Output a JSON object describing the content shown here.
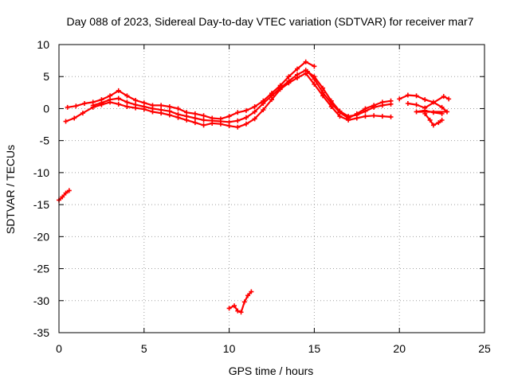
{
  "chart_data": {
    "type": "scatter",
    "title": "Day 088 of 2023, Sidereal Day-to-day VTEC variation (SDTVAR) for receiver mar7",
    "xlabel": "GPS time / hours",
    "ylabel": "SDTVAR / TECUs",
    "xlim": [
      0,
      25
    ],
    "ylim": [
      -35,
      10
    ],
    "xticks": [
      0,
      5,
      10,
      15,
      20,
      25
    ],
    "yticks": [
      10,
      5,
      0,
      -5,
      -10,
      -15,
      -20,
      -25,
      -30,
      -35
    ],
    "grid": true,
    "series_color": "#ff0000",
    "series": [
      {
        "name": "main-upper",
        "points": [
          [
            0.5,
            0.2
          ],
          [
            1.0,
            0.4
          ],
          [
            1.5,
            0.8
          ],
          [
            2.0,
            1.0
          ],
          [
            2.5,
            1.4
          ],
          [
            3.0,
            2.0
          ],
          [
            3.5,
            2.8
          ],
          [
            4.0,
            2.0
          ],
          [
            4.5,
            1.3
          ],
          [
            5.0,
            0.9
          ],
          [
            5.5,
            0.5
          ],
          [
            6.0,
            0.5
          ],
          [
            6.5,
            0.3
          ],
          [
            7.0,
            0.0
          ],
          [
            7.5,
            -0.6
          ],
          [
            8.0,
            -0.8
          ],
          [
            8.5,
            -1.1
          ],
          [
            9.0,
            -1.5
          ],
          [
            9.5,
            -1.6
          ],
          [
            10.0,
            -1.2
          ],
          [
            10.5,
            -0.6
          ],
          [
            11.0,
            -0.3
          ],
          [
            11.5,
            0.3
          ],
          [
            12.0,
            1.2
          ],
          [
            12.5,
            2.4
          ],
          [
            13.0,
            3.6
          ],
          [
            13.5,
            5.0
          ],
          [
            14.0,
            6.2
          ],
          [
            14.5,
            7.3
          ],
          [
            15.0,
            6.6
          ]
        ]
      },
      {
        "name": "main-lower",
        "points": [
          [
            0.4,
            -2.0
          ],
          [
            0.9,
            -1.5
          ],
          [
            1.4,
            -0.7
          ],
          [
            2.0,
            0.2
          ],
          [
            2.5,
            0.6
          ],
          [
            3.0,
            1.0
          ],
          [
            3.5,
            0.7
          ],
          [
            4.0,
            0.3
          ],
          [
            4.5,
            0.1
          ],
          [
            5.0,
            -0.1
          ],
          [
            5.5,
            -0.5
          ],
          [
            6.0,
            -0.7
          ],
          [
            6.5,
            -1.0
          ],
          [
            7.0,
            -1.4
          ],
          [
            7.5,
            -1.8
          ],
          [
            8.0,
            -2.2
          ],
          [
            8.5,
            -2.6
          ],
          [
            9.0,
            -2.3
          ],
          [
            9.5,
            -2.4
          ],
          [
            10.0,
            -2.7
          ],
          [
            10.5,
            -2.9
          ],
          [
            11.0,
            -2.4
          ],
          [
            11.5,
            -1.6
          ],
          [
            12.0,
            -0.2
          ],
          [
            12.5,
            1.4
          ],
          [
            13.0,
            3.0
          ],
          [
            13.5,
            4.0
          ],
          [
            14.0,
            4.8
          ],
          [
            14.5,
            5.5
          ],
          [
            15.0,
            3.8
          ],
          [
            15.5,
            2.0
          ],
          [
            16.0,
            0.3
          ],
          [
            16.5,
            -1.2
          ],
          [
            17.0,
            -1.8
          ],
          [
            17.5,
            -1.5
          ],
          [
            18.0,
            -1.2
          ],
          [
            18.5,
            -1.1
          ],
          [
            19.0,
            -1.2
          ],
          [
            19.5,
            -1.3
          ]
        ]
      },
      {
        "name": "main-middle",
        "points": [
          [
            2.0,
            0.5
          ],
          [
            2.5,
            0.9
          ],
          [
            3.0,
            1.4
          ],
          [
            3.5,
            1.6
          ],
          [
            4.0,
            1.0
          ],
          [
            4.5,
            0.6
          ],
          [
            5.0,
            0.3
          ],
          [
            5.5,
            0.0
          ],
          [
            6.0,
            -0.2
          ],
          [
            6.5,
            -0.4
          ],
          [
            7.0,
            -0.9
          ],
          [
            7.5,
            -1.2
          ],
          [
            8.0,
            -1.5
          ],
          [
            8.5,
            -1.8
          ],
          [
            9.0,
            -1.9
          ],
          [
            9.5,
            -2.0
          ],
          [
            10.0,
            -2.1
          ],
          [
            10.5,
            -1.9
          ],
          [
            11.0,
            -1.4
          ],
          [
            11.5,
            -0.5
          ],
          [
            12.0,
            0.8
          ],
          [
            12.5,
            2.0
          ],
          [
            13.0,
            3.2
          ],
          [
            13.5,
            4.3
          ],
          [
            14.0,
            5.3
          ],
          [
            14.5,
            6.0
          ],
          [
            15.0,
            5.0
          ],
          [
            15.5,
            3.2
          ],
          [
            16.0,
            1.2
          ],
          [
            16.5,
            -0.4
          ],
          [
            17.0,
            -1.2
          ],
          [
            17.5,
            -1.0
          ],
          [
            18.0,
            -0.4
          ],
          [
            18.5,
            0.2
          ],
          [
            19.0,
            0.5
          ],
          [
            19.5,
            0.7
          ]
        ]
      },
      {
        "name": "late-arc",
        "points": [
          [
            14.6,
            5.8
          ],
          [
            15.0,
            4.6
          ],
          [
            15.5,
            2.5
          ],
          [
            16.0,
            0.8
          ],
          [
            16.5,
            -0.6
          ],
          [
            17.0,
            -1.5
          ],
          [
            17.5,
            -0.8
          ],
          [
            18.0,
            0.0
          ],
          [
            18.5,
            0.5
          ],
          [
            19.0,
            1.0
          ],
          [
            19.5,
            1.2
          ]
        ]
      },
      {
        "name": "evening-segments",
        "points": [
          [
            20.0,
            1.5
          ],
          [
            20.5,
            2.1
          ],
          [
            21.0,
            2.0
          ],
          [
            21.5,
            1.4
          ],
          [
            22.0,
            1.0
          ],
          [
            22.5,
            0.2
          ],
          [
            22.8,
            -0.5
          ],
          [
            21.0,
            -0.5
          ],
          [
            21.5,
            -0.3
          ],
          [
            22.0,
            -0.6
          ],
          [
            22.5,
            -0.8
          ]
        ]
      },
      {
        "name": "evening-drop",
        "points": [
          [
            21.5,
            -0.8
          ],
          [
            21.8,
            -1.8
          ],
          [
            22.0,
            -2.6
          ],
          [
            22.3,
            -2.2
          ],
          [
            22.5,
            -1.8
          ]
        ]
      },
      {
        "name": "evening-tail",
        "points": [
          [
            20.5,
            0.8
          ],
          [
            21.0,
            0.6
          ],
          [
            21.5,
            0.1
          ],
          [
            22.6,
            1.9
          ],
          [
            22.9,
            1.5
          ]
        ]
      },
      {
        "name": "early-outlier",
        "points": [
          [
            0.0,
            -14.3
          ],
          [
            0.2,
            -13.8
          ],
          [
            0.4,
            -13.2
          ],
          [
            0.6,
            -12.8
          ]
        ]
      },
      {
        "name": "midday-outlier",
        "points": [
          [
            10.0,
            -31.2
          ],
          [
            10.3,
            -30.8
          ],
          [
            10.5,
            -31.6
          ],
          [
            10.7,
            -31.8
          ],
          [
            10.9,
            -30.2
          ],
          [
            11.1,
            -29.2
          ],
          [
            11.3,
            -28.6
          ]
        ]
      }
    ]
  }
}
